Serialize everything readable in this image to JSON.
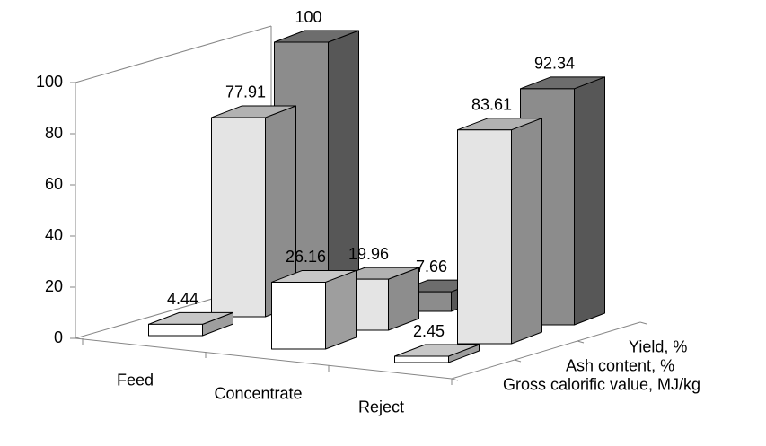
{
  "chart_data": {
    "type": "bar3d",
    "categories": [
      "Feed",
      "Concentrate",
      "Reject"
    ],
    "series": [
      {
        "name": "Gross calorific value, MJ/kg",
        "color": "#ffffff",
        "values": [
          4.44,
          26.16,
          2.45
        ]
      },
      {
        "name": "Ash content, %",
        "color": "#e4e4e4",
        "values": [
          77.91,
          19.96,
          83.61
        ]
      },
      {
        "name": "Yield, %",
        "color": "#8c8c8c",
        "values": [
          100,
          7.66,
          92.34
        ]
      }
    ],
    "ylim": [
      0,
      100
    ],
    "yticks": [
      0,
      20,
      40,
      60,
      80,
      100
    ]
  }
}
